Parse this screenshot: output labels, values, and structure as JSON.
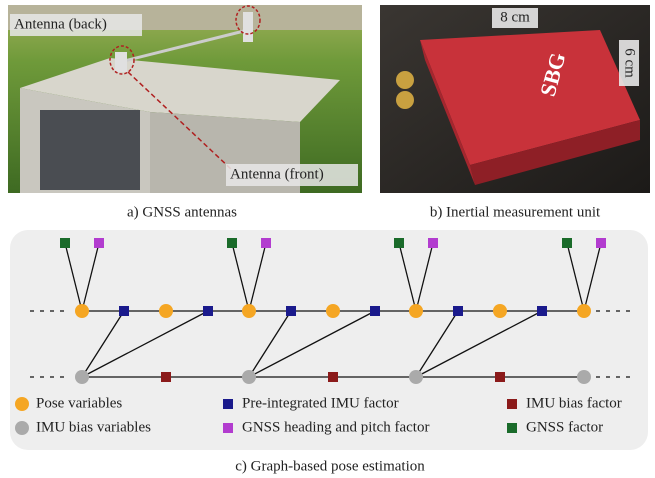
{
  "photos": [
    {
      "caption": "a) GNSS antennas",
      "labels": [
        "Antenna (back)",
        "Antenna (front)"
      ]
    },
    {
      "caption": "b) Inertial measurement unit",
      "labels": [
        "8 cm",
        "6 cm"
      ],
      "brand": "SBG"
    }
  ],
  "graph": {
    "caption": "c) Graph-based pose estimation",
    "legend": [
      {
        "label": "Pose variables"
      },
      {
        "label": "Pre-integrated IMU factor"
      },
      {
        "label": "IMU bias factor"
      },
      {
        "label": "IMU bias variables"
      },
      {
        "label": "GNSS heading and pitch factor"
      },
      {
        "label": "GNSS factor"
      }
    ]
  }
}
